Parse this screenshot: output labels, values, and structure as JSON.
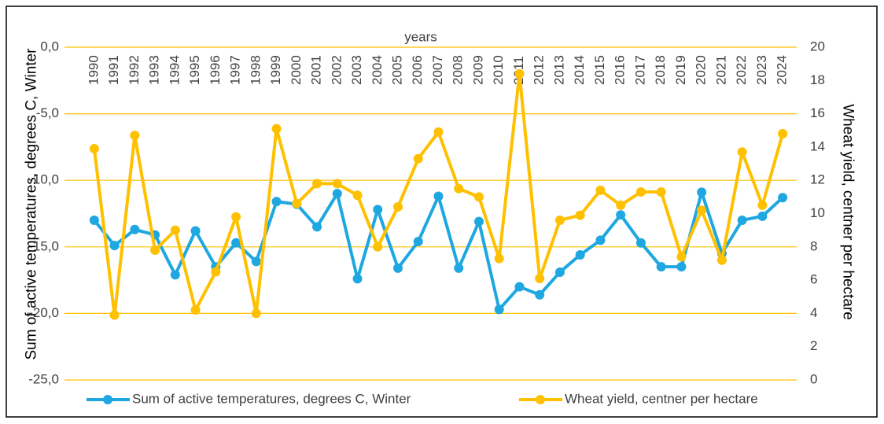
{
  "chart_data": {
    "type": "line",
    "x_label": "years",
    "y_label": "Sum of active temperatures, degrees C, Winter",
    "y2_label": "Wheat yield, centner per hectare",
    "categories": [
      "1990",
      "1991",
      "1992",
      "1993",
      "1994",
      "1995",
      "1996",
      "1997",
      "1998",
      "1999",
      "2000",
      "2001",
      "2002",
      "2003",
      "2004",
      "2005",
      "2006",
      "2007",
      "2008",
      "2009",
      "2010",
      "2011",
      "2012",
      "2013",
      "2014",
      "2015",
      "2016",
      "2017",
      "2018",
      "2019",
      "2020",
      "2021",
      "2022",
      "2023",
      "2024"
    ],
    "series": [
      {
        "name": "Sum of active temperatures, degrees C, Winter",
        "color": "#1ea7e1",
        "values": [
          -13.0,
          -14.9,
          -13.7,
          -14.1,
          -17.1,
          -13.8,
          -16.5,
          -14.7,
          -16.1,
          -11.6,
          -11.8,
          -13.5,
          -11.0,
          -17.4,
          -12.2,
          -16.6,
          -14.6,
          -11.2,
          -16.6,
          -13.1,
          -19.7,
          -18.0,
          -18.6,
          -16.9,
          -15.6,
          -14.5,
          -12.6,
          -14.7,
          -16.5,
          -16.5,
          -10.9,
          -15.5,
          -13.0,
          -12.7,
          -11.3
        ]
      },
      {
        "name": "Wheat yield, centner per hectare",
        "color": "#ffc000",
        "axis": "y2",
        "values": [
          13.9,
          3.9,
          14.7,
          7.8,
          9.0,
          4.2,
          6.5,
          9.8,
          4.0,
          15.1,
          10.6,
          11.8,
          11.8,
          11.1,
          8.0,
          10.4,
          13.3,
          14.9,
          11.5,
          11.0,
          7.3,
          18.4,
          6.1,
          9.6,
          9.9,
          11.4,
          10.5,
          11.3,
          11.3,
          7.4,
          10.2,
          7.2,
          13.7,
          10.5,
          14.8
        ]
      }
    ],
    "ylim": [
      -25,
      0
    ],
    "yticks": [
      {
        "value": -25,
        "label": "-25,0"
      },
      {
        "value": -20,
        "label": "-20,0"
      },
      {
        "value": -15,
        "label": "-15,0"
      },
      {
        "value": -10,
        "label": "-10,0"
      },
      {
        "value": -5,
        "label": "-5,0"
      },
      {
        "value": 0,
        "label": "0,0"
      }
    ],
    "y2lim": [
      0,
      20
    ],
    "y2ticks": [
      0,
      2,
      4,
      6,
      8,
      10,
      12,
      14,
      16,
      18,
      20
    ],
    "grid": true,
    "grid_color": "#ffc000",
    "legend": "bottom"
  }
}
